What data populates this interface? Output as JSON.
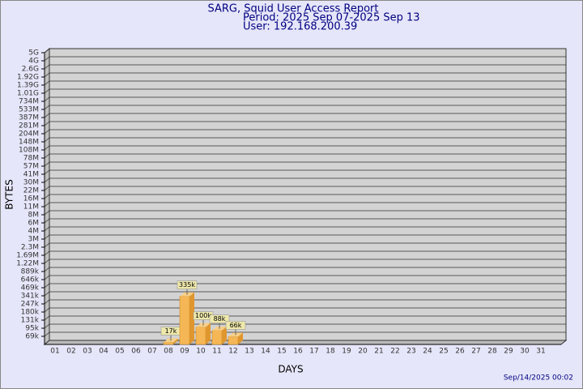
{
  "chart_data": {
    "type": "bar",
    "title": "SARG, Squid User Access Report",
    "subtitles": [
      "Period: 2025 Sep 07-2025 Sep 13",
      "User: 192.168.200.39"
    ],
    "xlabel": "DAYS",
    "ylabel": "BYTES",
    "footer": "Sep/14/2025 00:02",
    "categories": [
      "01",
      "02",
      "03",
      "04",
      "05",
      "06",
      "07",
      "08",
      "09",
      "10",
      "11",
      "12",
      "13",
      "14",
      "15",
      "16",
      "17",
      "18",
      "19",
      "20",
      "21",
      "22",
      "23",
      "24",
      "25",
      "26",
      "27",
      "28",
      "29",
      "30",
      "31"
    ],
    "values": [
      null,
      null,
      null,
      null,
      null,
      null,
      null,
      17000,
      335000,
      100000,
      88000,
      66000,
      null,
      null,
      null,
      null,
      null,
      null,
      null,
      null,
      null,
      null,
      null,
      null,
      null,
      null,
      null,
      null,
      null,
      null,
      null
    ],
    "value_labels": [
      null,
      null,
      null,
      null,
      null,
      null,
      null,
      "17k",
      "335k",
      "100k",
      "88k",
      "66k",
      null,
      null,
      null,
      null,
      null,
      null,
      null,
      null,
      null,
      null,
      null,
      null,
      null,
      null,
      null,
      null,
      null,
      null,
      null
    ],
    "color": "#f5b755",
    "ylim": [
      0,
      5000000000
    ],
    "yticks": [
      {
        "value": 69000,
        "label": "69k"
      },
      {
        "value": 95000,
        "label": "95k"
      },
      {
        "value": 131000,
        "label": "131k"
      },
      {
        "value": 180000,
        "label": "180k"
      },
      {
        "value": 247000,
        "label": "247k"
      },
      {
        "value": 341000,
        "label": "341k"
      },
      {
        "value": 469000,
        "label": "469k"
      },
      {
        "value": 646000,
        "label": "646k"
      },
      {
        "value": 889000,
        "label": "889k"
      },
      {
        "value": 1220000,
        "label": "1.22M"
      },
      {
        "value": 1690000,
        "label": "1.69M"
      },
      {
        "value": 2300000,
        "label": "2.3M"
      },
      {
        "value": 3000000,
        "label": "3M"
      },
      {
        "value": 4000000,
        "label": "4M"
      },
      {
        "value": 6000000,
        "label": "6M"
      },
      {
        "value": 8000000,
        "label": "8M"
      },
      {
        "value": 11000000,
        "label": "11M"
      },
      {
        "value": 16000000,
        "label": "16M"
      },
      {
        "value": 22000000,
        "label": "22M"
      },
      {
        "value": 30000000,
        "label": "30M"
      },
      {
        "value": 41000000,
        "label": "41M"
      },
      {
        "value": 57000000,
        "label": "57M"
      },
      {
        "value": 78000000,
        "label": "78M"
      },
      {
        "value": 108000000,
        "label": "108M"
      },
      {
        "value": 148000000,
        "label": "148M"
      },
      {
        "value": 204000000,
        "label": "204M"
      },
      {
        "value": 281000000,
        "label": "281M"
      },
      {
        "value": 387000000,
        "label": "387M"
      },
      {
        "value": 533000000,
        "label": "533M"
      },
      {
        "value": 734000000,
        "label": "734M"
      },
      {
        "value": 1010000000,
        "label": "1.01G"
      },
      {
        "value": 1390000000,
        "label": "1.39G"
      },
      {
        "value": 1920000000,
        "label": "1.92G"
      },
      {
        "value": 2600000000,
        "label": "2.6G"
      },
      {
        "value": 4000000000,
        "label": "4G"
      },
      {
        "value": 5000000000,
        "label": "5G"
      }
    ],
    "grid": true
  }
}
